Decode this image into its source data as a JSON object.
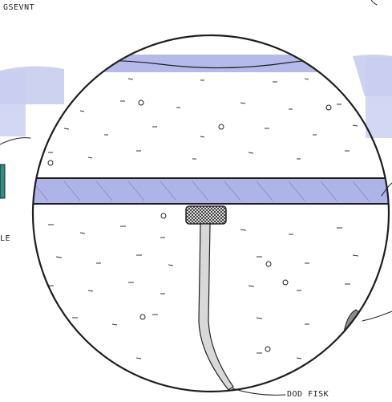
{
  "labels": {
    "top_left": "GSEVNT",
    "left_edge": "LE",
    "bottom_right": "DOD FISK"
  },
  "colors": {
    "water": "#c9cdf0",
    "water_band": "#aeb3e8",
    "ink": "#1e1e1e",
    "teal": "#2f8f84",
    "rock": "#8c8c8c"
  }
}
